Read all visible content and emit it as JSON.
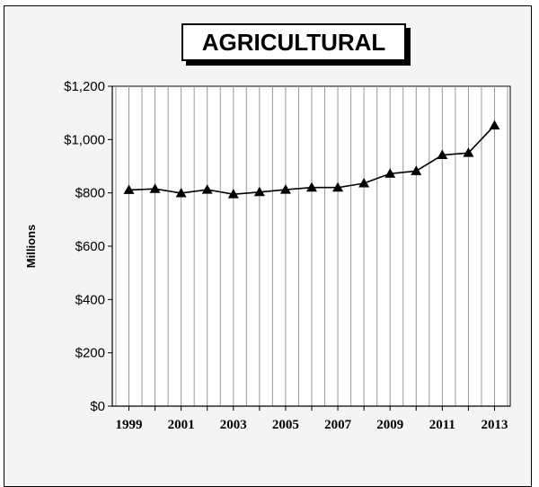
{
  "chart_data": {
    "type": "line",
    "title": "AGRICULTURAL",
    "xlabel": "",
    "ylabel": "Millions",
    "x": [
      1999,
      2000,
      2001,
      2002,
      2003,
      2004,
      2005,
      2006,
      2007,
      2008,
      2009,
      2010,
      2011,
      2012,
      2013
    ],
    "series": [
      {
        "values": [
          811,
          815,
          799,
          812,
          795,
          803,
          812,
          820,
          820,
          836,
          872,
          882,
          942,
          950,
          1053
        ]
      }
    ],
    "xlim": [
      1999,
      2013
    ],
    "ylim": [
      0,
      1200
    ],
    "yticks": [
      0,
      200,
      400,
      600,
      800,
      1000,
      1200
    ],
    "ytick_labels": [
      "$0",
      "$200",
      "$400",
      "$600",
      "$800",
      "$1,000",
      "$1,200"
    ],
    "xtick_labels": [
      "1999",
      "2001",
      "2003",
      "2005",
      "2007",
      "2009",
      "2011",
      "2013"
    ],
    "grid": "vertical",
    "marker": "triangle",
    "colors": {
      "line": "#000000",
      "grid": "#999999",
      "background": "#f4f4f4"
    }
  }
}
